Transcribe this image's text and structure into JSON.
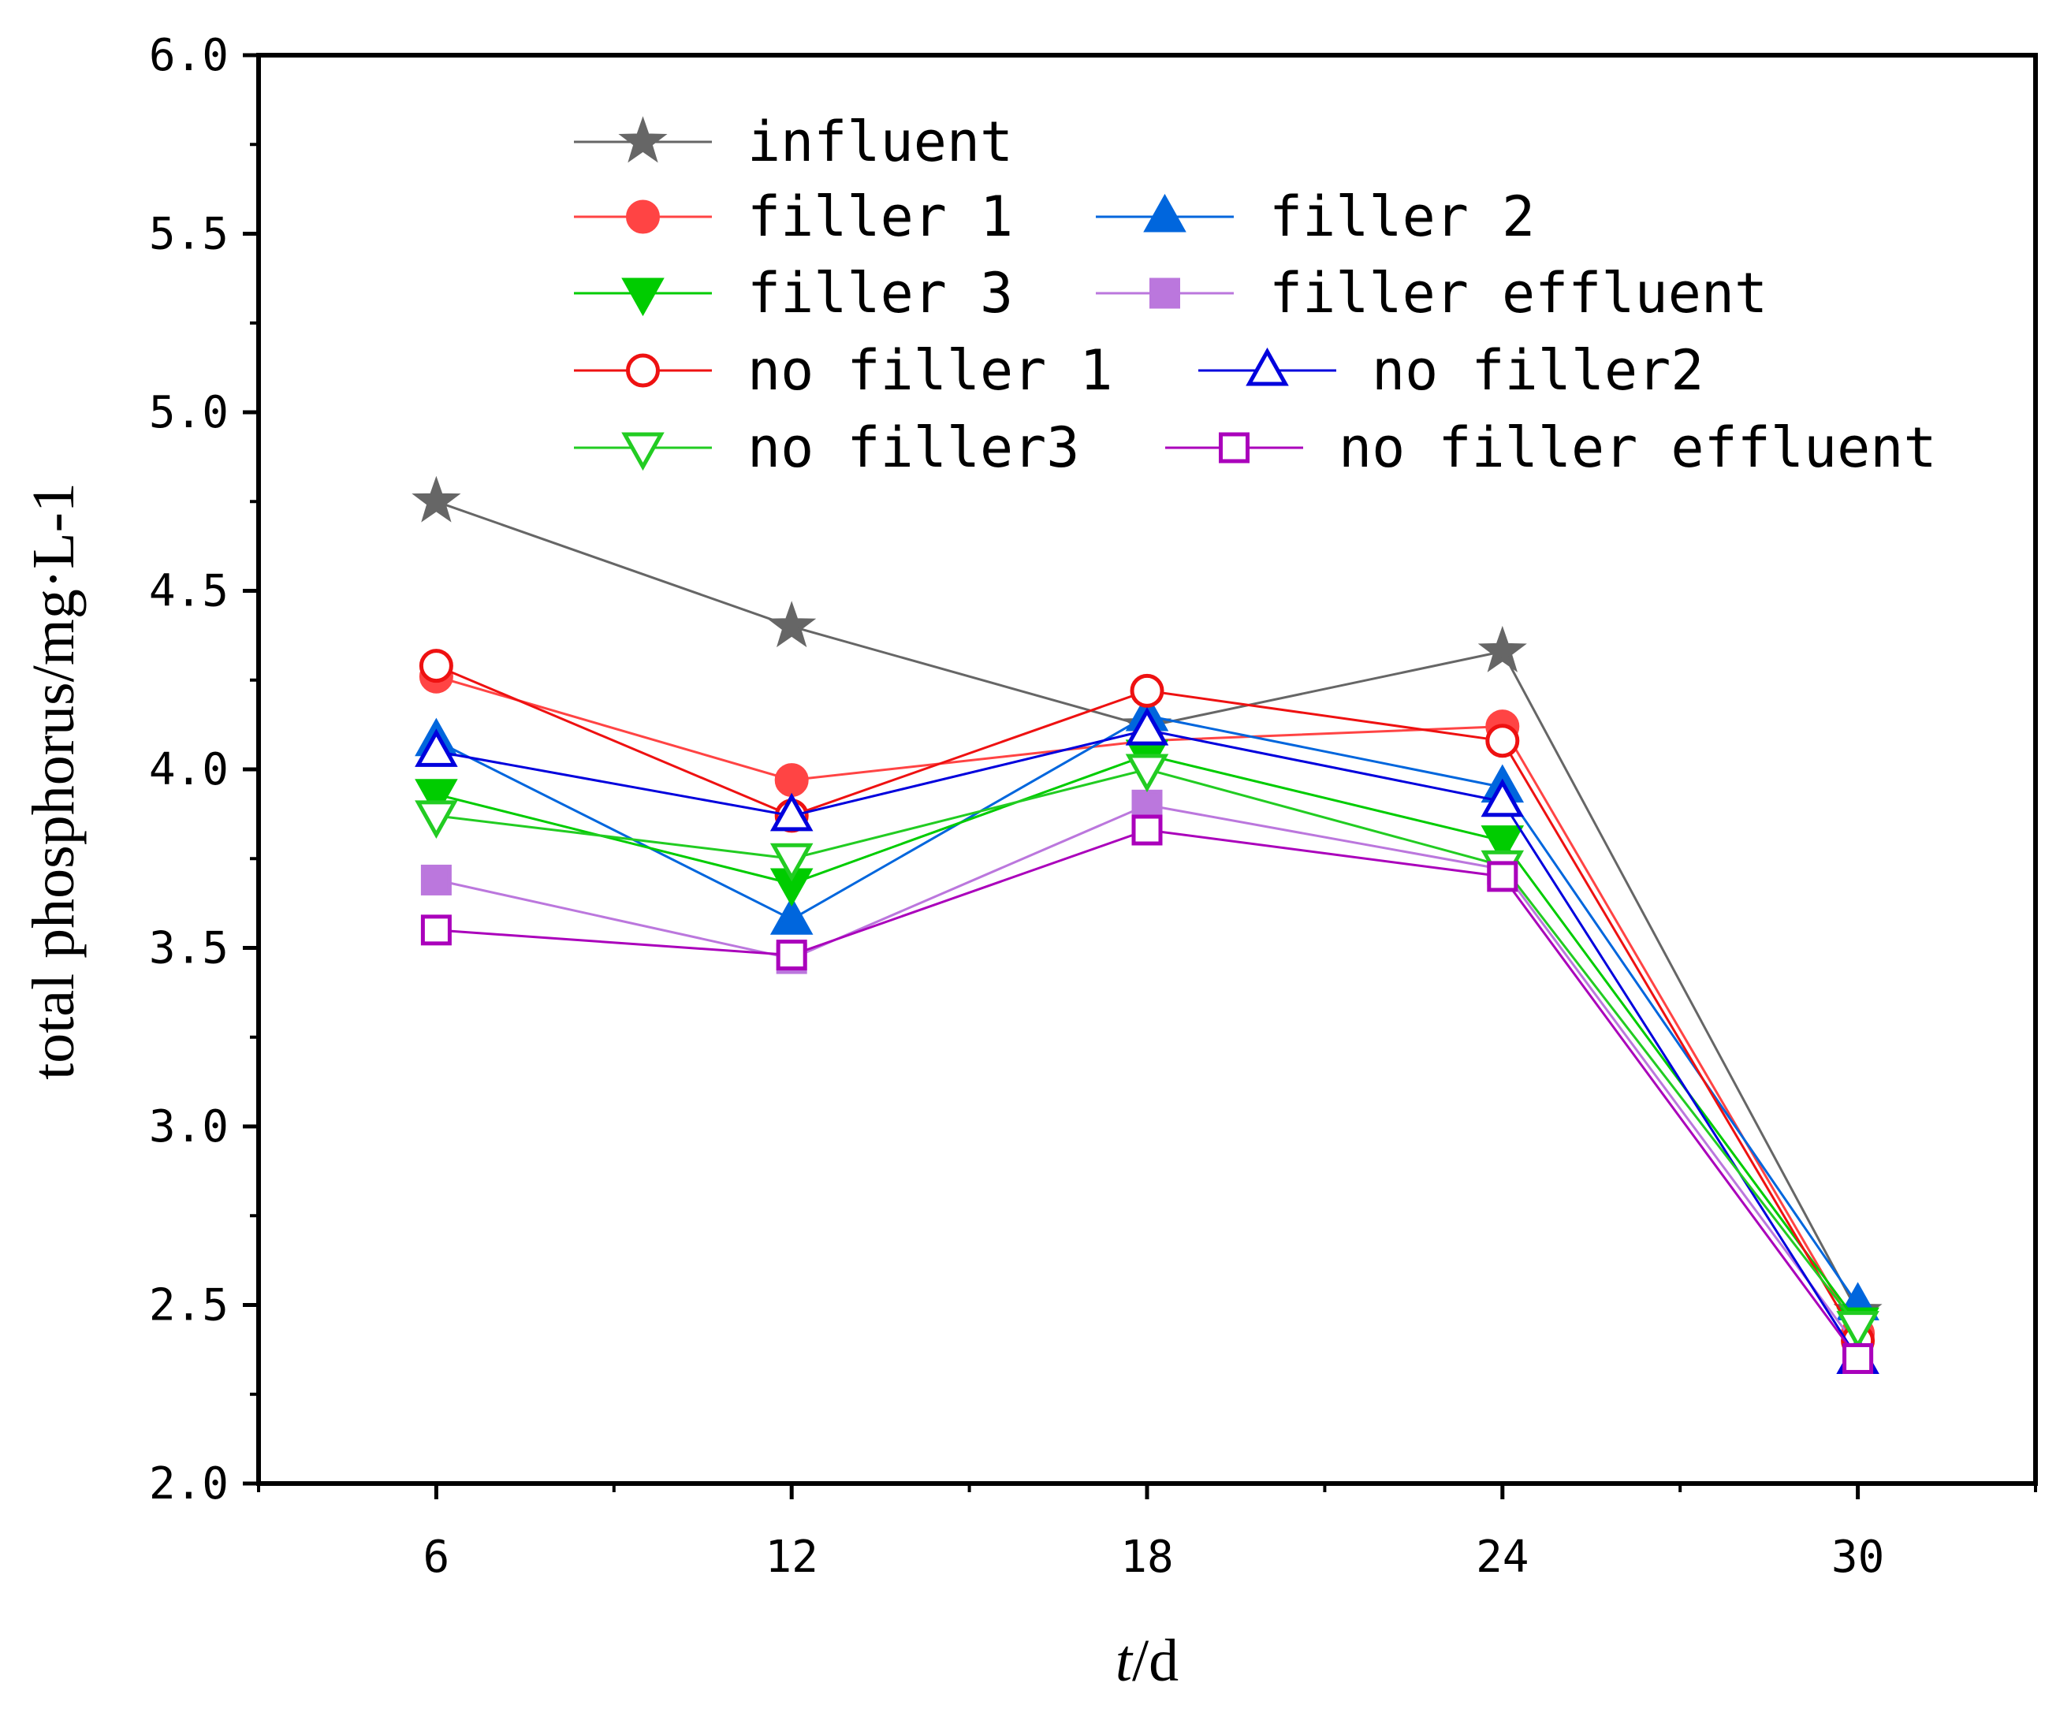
{
  "chart_data": {
    "type": "line",
    "title": "",
    "xlabel_italic": "t",
    "xlabel_rest": "/d",
    "ylabel": "total phosphorus/mg·L-1",
    "x": [
      6,
      12,
      18,
      24,
      30
    ],
    "x_tick_labels": [
      "6",
      "12",
      "18",
      "24",
      "30"
    ],
    "xlim": [
      3,
      33
    ],
    "ylim": [
      2.0,
      6.0
    ],
    "y_ticks": [
      2.0,
      2.5,
      3.0,
      3.5,
      4.0,
      4.5,
      5.0,
      5.5,
      6.0
    ],
    "y_tick_labels": [
      "2.0",
      "2.5",
      "3.0",
      "3.5",
      "4.0",
      "4.5",
      "5.0",
      "5.5",
      "6.0"
    ],
    "legend_position": "top",
    "series": [
      {
        "name": "influent",
        "label": "influent",
        "color": "#666666",
        "marker": "star",
        "fill": true,
        "values": [
          4.75,
          4.4,
          4.12,
          4.33,
          2.48
        ]
      },
      {
        "name": "filler 1",
        "label": "filler 1",
        "color": "#ff4444",
        "marker": "circle",
        "fill": true,
        "values": [
          4.26,
          3.97,
          4.08,
          4.12,
          2.42
        ]
      },
      {
        "name": "filler 2",
        "label": "filler 2",
        "color": "#0066dd",
        "marker": "triangle-up",
        "fill": true,
        "values": [
          4.08,
          3.58,
          4.15,
          3.95,
          2.5
        ]
      },
      {
        "name": "filler 3",
        "label": "filler 3",
        "color": "#00cc00",
        "marker": "triangle-down",
        "fill": true,
        "values": [
          3.93,
          3.68,
          4.04,
          3.8,
          2.45
        ]
      },
      {
        "name": "filler effluent",
        "label": "filler effluent",
        "color": "#bb77dd",
        "marker": "square",
        "fill": true,
        "values": [
          3.69,
          3.47,
          3.9,
          3.72,
          2.38
        ]
      },
      {
        "name": "no filler 1",
        "label": "no filler 1",
        "color": "#ee1111",
        "marker": "circle",
        "fill": false,
        "values": [
          4.29,
          3.87,
          4.22,
          4.08,
          2.4
        ]
      },
      {
        "name": "no filler2",
        "label": "no filler2",
        "color": "#0000dd",
        "marker": "triangle-up",
        "fill": false,
        "values": [
          4.05,
          3.87,
          4.11,
          3.91,
          2.35
        ]
      },
      {
        "name": "no filler3",
        "label": "no filler3",
        "color": "#22cc22",
        "marker": "triangle-down",
        "fill": false,
        "values": [
          3.87,
          3.75,
          4.0,
          3.73,
          2.44
        ]
      },
      {
        "name": "no filler effluent",
        "label": "no filler effluent",
        "color": "#aa00bb",
        "marker": "square",
        "fill": false,
        "values": [
          3.55,
          3.48,
          3.83,
          3.7,
          2.35
        ]
      }
    ]
  }
}
